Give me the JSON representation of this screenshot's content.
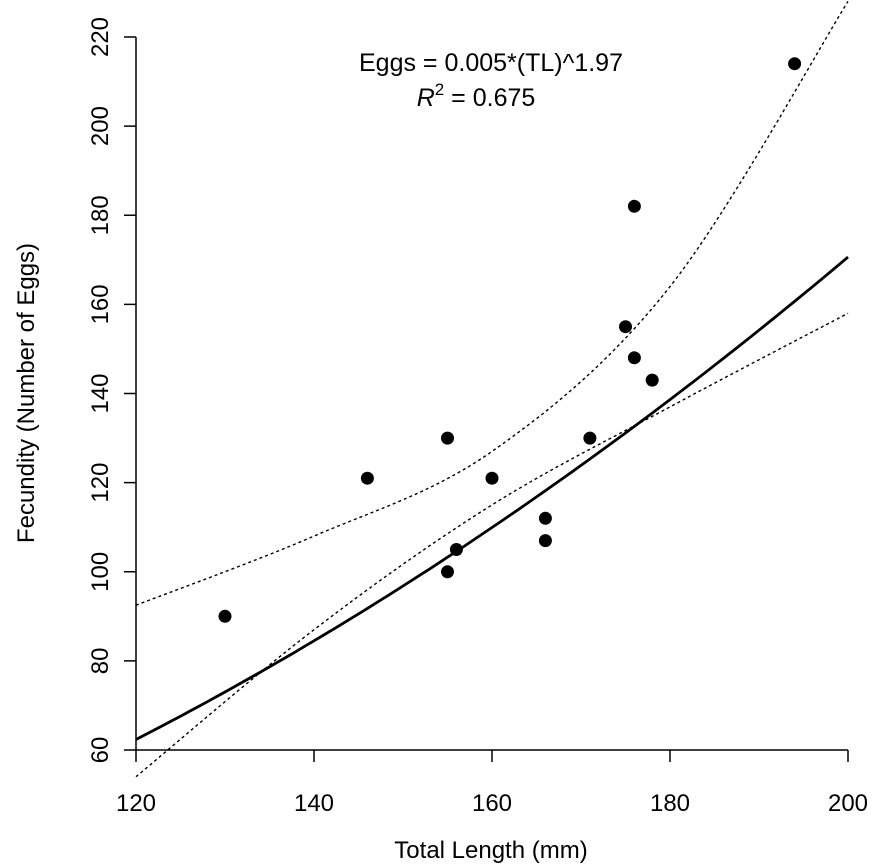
{
  "chart_data": {
    "type": "scatter",
    "xlabel": "Total Length (mm)",
    "ylabel": "Fecundity (Number of Eggs)",
    "xlim": [
      120,
      200
    ],
    "ylim": [
      60,
      220
    ],
    "x_ticks": [
      "120",
      "140",
      "160",
      "180",
      "200"
    ],
    "y_ticks": [
      "60",
      "80",
      "100",
      "120",
      "140",
      "160",
      "180",
      "200",
      "220"
    ],
    "grid": false,
    "points": [
      {
        "x": 130,
        "y": 90
      },
      {
        "x": 146,
        "y": 121
      },
      {
        "x": 155,
        "y": 130
      },
      {
        "x": 155,
        "y": 100
      },
      {
        "x": 156,
        "y": 105
      },
      {
        "x": 160,
        "y": 121
      },
      {
        "x": 166,
        "y": 112
      },
      {
        "x": 166,
        "y": 107
      },
      {
        "x": 171,
        "y": 130
      },
      {
        "x": 175,
        "y": 155
      },
      {
        "x": 176,
        "y": 182
      },
      {
        "x": 176,
        "y": 148
      },
      {
        "x": 178,
        "y": 143
      },
      {
        "x": 194,
        "y": 214
      }
    ],
    "fit": {
      "a": 0.005,
      "b": 1.97,
      "x_range": [
        120,
        200
      ]
    },
    "upper_band": {
      "x": [
        120,
        140,
        160,
        180,
        200
      ],
      "y": [
        92.5,
        108,
        127,
        164,
        228
      ]
    },
    "lower_band": {
      "x": [
        120,
        140,
        160,
        180,
        200
      ],
      "y": [
        54,
        87,
        115,
        137,
        158
      ]
    },
    "annotation": {
      "equation": "Eggs = 0.005*(TL)^1.97",
      "r2_label": "R",
      "r2_exponent": "2",
      "r2_value": " = 0.675"
    }
  }
}
